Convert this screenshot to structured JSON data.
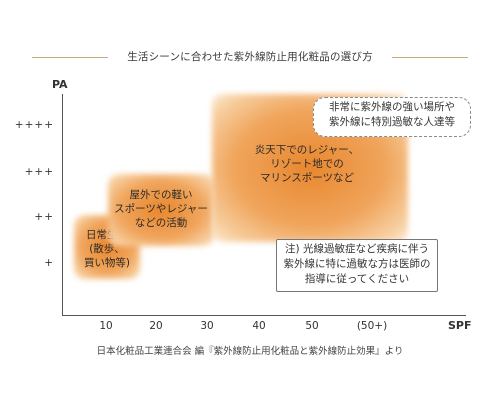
{
  "title": "生活シーンに合わせた紫外線防止用化粧品の選び方",
  "y_axis": {
    "label": "PA",
    "ticks": [
      "++++",
      "+++",
      "++",
      "+"
    ]
  },
  "x_axis": {
    "label": "SPF",
    "ticks": [
      "10",
      "20",
      "30",
      "40",
      "50",
      "(50+)"
    ]
  },
  "scenes": [
    {
      "lines": [
        "日常生活",
        "(散歩、",
        "買い物等)"
      ]
    },
    {
      "lines": [
        "屋外での軽い",
        "スポーツやレジャー",
        "などの活動"
      ]
    },
    {
      "lines": [
        "炎天下でのレジャー、",
        "リゾート地での",
        "マリンスポーツなど"
      ]
    }
  ],
  "callout_dashed": {
    "lines": [
      "非常に紫外線の強い場所や",
      "紫外線に特別過敏な人達等"
    ]
  },
  "note": {
    "lines": [
      "注) 光線過敏症など疾病に伴う",
      "紫外線に特に過敏な方は医師の",
      "指導に従ってください"
    ]
  },
  "colors": {
    "blob_core": "#e8872e",
    "blob_edge": "#f7cfa1",
    "title_rule": "#c9a978"
  },
  "source": "日本化粧品工業連合会 編『紫外線防止用化粧品と紫外線防止効果』より"
}
